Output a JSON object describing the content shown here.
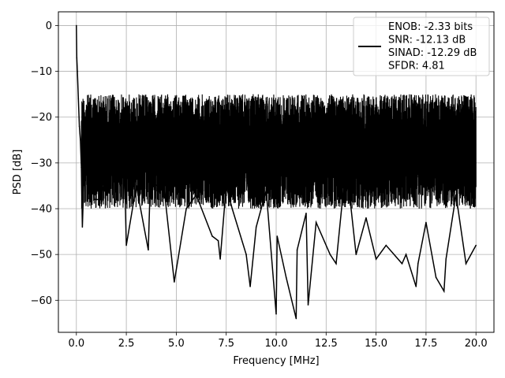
{
  "chart_data": {
    "type": "line",
    "xlabel": "Frequency [MHz]",
    "ylabel": "PSD [dB]",
    "xlim": [
      -0.9,
      20.9
    ],
    "ylim": [
      -67,
      3
    ],
    "xticks": [
      0.0,
      2.5,
      5.0,
      7.5,
      10.0,
      12.5,
      15.0,
      17.5,
      20.0
    ],
    "xtick_labels": [
      "0.0",
      "2.5",
      "5.0",
      "7.5",
      "10.0",
      "12.5",
      "15.0",
      "17.5",
      "20.0"
    ],
    "yticks": [
      0,
      -10,
      -20,
      -30,
      -40,
      -50,
      -60
    ],
    "ytick_labels": [
      "0",
      "−10",
      "−20",
      "−30",
      "−40",
      "−50",
      "−60"
    ],
    "grid": true,
    "legend_position": "top-right",
    "legend": [
      "ENOB: -2.33 bits",
      "SNR: -12.13 dB",
      "SINAD: -12.29 dB",
      "SFDR: 4.81"
    ],
    "series": [
      {
        "color": "#000000",
        "x": [
          0.0,
          0.02,
          0.05,
          0.1,
          0.15,
          0.2,
          0.25,
          0.3,
          0.4,
          0.6,
          0.9,
          1.2,
          1.5,
          2.0,
          2.4,
          2.5,
          3.0,
          3.6,
          3.7,
          4.4,
          4.9,
          5.5,
          6.0,
          6.8,
          7.1,
          7.2,
          7.5,
          7.8,
          8.5,
          8.7,
          9.0,
          9.5,
          10.0,
          10.05,
          10.5,
          11.0,
          11.05,
          11.5,
          11.6,
          12.0,
          12.7,
          13.0,
          13.5,
          14.0,
          14.5,
          15.0,
          15.5,
          16.3,
          16.5,
          17.0,
          17.1,
          17.5,
          18.0,
          18.4,
          18.5,
          19.0,
          19.5,
          20.0
        ],
        "y": [
          0,
          -7,
          -10,
          -16,
          -22,
          -25,
          -31,
          -44,
          -30,
          -26,
          -38,
          -38,
          -33,
          -32,
          -30,
          -48,
          -35,
          -49,
          -34,
          -36,
          -56,
          -40,
          -37,
          -46,
          -47,
          -51,
          -35,
          -40,
          -50,
          -57,
          -44,
          -36,
          -63,
          -46,
          -55,
          -64,
          -49,
          -41,
          -61,
          -43,
          -50,
          -52,
          -30,
          -50,
          -42,
          -51,
          -48,
          -52,
          -50,
          -57,
          -52,
          -43,
          -55,
          -58,
          -51,
          -37,
          -52,
          -48
        ]
      }
    ]
  }
}
